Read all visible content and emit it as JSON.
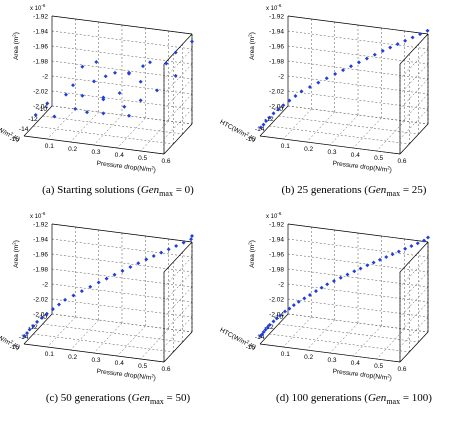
{
  "axis_text": {
    "exponent": "x 10",
    "exponent_power": "-6",
    "zlabel": "Area (m",
    "zlabel_sup": "2",
    "zlabel_end": ")",
    "xlabel": "Pressure drop(N/m",
    "xlabel_sup": "2",
    "xlabel_end": ")",
    "ylabel": "HTC(W/m",
    "ylabel_sup": "2",
    "ylabel_end": ".K)",
    "z_ticks": [
      "-1.92",
      "-1.94",
      "-1.96",
      "-1.98",
      "-2",
      "-2.02",
      "-2.04"
    ],
    "x_ticks": [
      "0.1",
      "0.2",
      "0.3",
      "0.4",
      "0.5",
      "0.6"
    ],
    "y_ticks": [
      "-10",
      "-12",
      "-14",
      "-16"
    ]
  },
  "colors": {
    "marker": "#1f3fd6",
    "axis": "#000000",
    "grid": "#555555"
  },
  "chart_data": [
    {
      "type": "scatter",
      "caption": {
        "prefix": "(a) Starting solutions (",
        "italic": "Gen",
        "sub": "max",
        "suffix": " = 0)"
      },
      "xlabel": "Pressure drop(N/m2)",
      "ylabel": "HTC(W/m2.K)",
      "zlabel": "Area (m2)",
      "xlim": [
        0.0,
        0.6
      ],
      "ylim": [
        -16,
        -10
      ],
      "zlim": [
        -2.04e-06,
        -1.92e-06
      ],
      "grid": true,
      "points": [
        {
          "x": 0.05,
          "y": -16.0,
          "z": -2.01e-06
        },
        {
          "x": 0.08,
          "y": -15.0,
          "z": -2e-06
        },
        {
          "x": 0.1,
          "y": -14.5,
          "z": -2.02e-06
        },
        {
          "x": 0.12,
          "y": -13.0,
          "z": -2e-06
        },
        {
          "x": 0.14,
          "y": -12.5,
          "z": -1.99e-06
        },
        {
          "x": 0.18,
          "y": -14.0,
          "z": -2.01e-06
        },
        {
          "x": 0.2,
          "y": -13.5,
          "z": -1.995e-06
        },
        {
          "x": 0.22,
          "y": -12.0,
          "z": -1.985e-06
        },
        {
          "x": 0.25,
          "y": -15.0,
          "z": -2.005e-06
        },
        {
          "x": 0.26,
          "y": -11.5,
          "z": -1.98e-06
        },
        {
          "x": 0.28,
          "y": -13.0,
          "z": -2e-06
        },
        {
          "x": 0.3,
          "y": -14.0,
          "z": -1.99e-06
        },
        {
          "x": 0.31,
          "y": -12.0,
          "z": -1.97e-06
        },
        {
          "x": 0.33,
          "y": -15.5,
          "z": -2e-06
        },
        {
          "x": 0.35,
          "y": -11.0,
          "z": -1.975e-06
        },
        {
          "x": 0.36,
          "y": -13.5,
          "z": -1.985e-06
        },
        {
          "x": 0.38,
          "y": -12.5,
          "z": -1.965e-06
        },
        {
          "x": 0.4,
          "y": -14.5,
          "z": -1.995e-06
        },
        {
          "x": 0.42,
          "y": -11.5,
          "z": -1.96e-06
        },
        {
          "x": 0.44,
          "y": -13.0,
          "z": -1.97e-06
        },
        {
          "x": 0.46,
          "y": -12.0,
          "z": -1.95e-06
        },
        {
          "x": 0.48,
          "y": -15.0,
          "z": -1.98e-06
        },
        {
          "x": 0.5,
          "y": -10.5,
          "z": -1.96e-06
        },
        {
          "x": 0.52,
          "y": -13.5,
          "z": -1.975e-06
        },
        {
          "x": 0.55,
          "y": -11.0,
          "z": -1.94e-06
        },
        {
          "x": 0.58,
          "y": -12.5,
          "z": -1.96e-06
        },
        {
          "x": 0.6,
          "y": -10.0,
          "z": -1.93e-06
        },
        {
          "x": 0.15,
          "y": -11.0,
          "z": -1.975e-06
        },
        {
          "x": 0.45,
          "y": -16.0,
          "z": -1.995e-06
        },
        {
          "x": 0.2,
          "y": -10.5,
          "z": -1.97e-06
        }
      ]
    },
    {
      "type": "scatter",
      "caption": {
        "prefix": "(b) 25 generations (",
        "italic": "Gen",
        "sub": "max",
        "suffix": " = 25)"
      },
      "xlabel": "Pressure drop(N/m2)",
      "ylabel": "HTC(W/m2.K)",
      "zlabel": "Area (m2)",
      "xlim": [
        0.0,
        0.6
      ],
      "ylim": [
        -16,
        -10
      ],
      "zlim": [
        -2.04e-06,
        -1.92e-06
      ],
      "grid": true,
      "points": [
        {
          "x": 0.0,
          "y": -15.8,
          "z": -2.03e-06
        },
        {
          "x": 0.005,
          "y": -15.5,
          "z": -2.028e-06
        },
        {
          "x": 0.01,
          "y": -15.2,
          "z": -2.025e-06
        },
        {
          "x": 0.02,
          "y": -14.9,
          "z": -2.022e-06
        },
        {
          "x": 0.03,
          "y": -14.6,
          "z": -2.018e-06
        },
        {
          "x": 0.045,
          "y": -14.3,
          "z": -2.014e-06
        },
        {
          "x": 0.06,
          "y": -14.0,
          "z": -2.01e-06
        },
        {
          "x": 0.08,
          "y": -13.7,
          "z": -2.005e-06
        },
        {
          "x": 0.1,
          "y": -13.4,
          "z": -2e-06
        },
        {
          "x": 0.12,
          "y": -13.1,
          "z": -1.995e-06
        },
        {
          "x": 0.15,
          "y": -12.8,
          "z": -1.99e-06
        },
        {
          "x": 0.18,
          "y": -12.5,
          "z": -1.985e-06
        },
        {
          "x": 0.21,
          "y": -12.2,
          "z": -1.98e-06
        },
        {
          "x": 0.24,
          "y": -11.9,
          "z": -1.975e-06
        },
        {
          "x": 0.27,
          "y": -11.7,
          "z": -1.97e-06
        },
        {
          "x": 0.3,
          "y": -11.5,
          "z": -1.965e-06
        },
        {
          "x": 0.33,
          "y": -11.3,
          "z": -1.96e-06
        },
        {
          "x": 0.36,
          "y": -11.1,
          "z": -1.955e-06
        },
        {
          "x": 0.39,
          "y": -10.9,
          "z": -1.95e-06
        },
        {
          "x": 0.42,
          "y": -10.7,
          "z": -1.945e-06
        },
        {
          "x": 0.45,
          "y": -10.6,
          "z": -1.94e-06
        },
        {
          "x": 0.48,
          "y": -10.5,
          "z": -1.935e-06
        },
        {
          "x": 0.51,
          "y": -10.4,
          "z": -1.93e-06
        },
        {
          "x": 0.54,
          "y": -10.3,
          "z": -1.925e-06
        },
        {
          "x": 0.57,
          "y": -10.2,
          "z": -1.92e-06
        },
        {
          "x": 0.6,
          "y": -10.1,
          "z": -1.915e-06
        }
      ]
    },
    {
      "type": "scatter",
      "caption": {
        "prefix": "(c) 50 generations (",
        "italic": "Gen",
        "sub": "max",
        "suffix": " = 50)"
      },
      "xlabel": "Pressure drop(N/m2)",
      "ylabel": "HTC(W/m2.K)",
      "zlabel": "Area (m2)",
      "xlim": [
        0.0,
        0.6
      ],
      "ylim": [
        -16,
        -10
      ],
      "zlim": [
        -2.04e-06,
        -1.92e-06
      ],
      "grid": true,
      "points": [
        {
          "x": 0.0,
          "y": -15.9,
          "z": -2.03e-06
        },
        {
          "x": 0.005,
          "y": -15.6,
          "z": -2.028e-06
        },
        {
          "x": 0.01,
          "y": -15.3,
          "z": -2.025e-06
        },
        {
          "x": 0.02,
          "y": -15.0,
          "z": -2.022e-06
        },
        {
          "x": 0.03,
          "y": -14.7,
          "z": -2.018e-06
        },
        {
          "x": 0.045,
          "y": -14.4,
          "z": -2.014e-06
        },
        {
          "x": 0.06,
          "y": -14.1,
          "z": -2.01e-06
        },
        {
          "x": 0.08,
          "y": -13.8,
          "z": -2.005e-06
        },
        {
          "x": 0.1,
          "y": -13.5,
          "z": -2e-06
        },
        {
          "x": 0.12,
          "y": -13.2,
          "z": -1.995e-06
        },
        {
          "x": 0.15,
          "y": -12.9,
          "z": -1.99e-06
        },
        {
          "x": 0.18,
          "y": -12.6,
          "z": -1.985e-06
        },
        {
          "x": 0.21,
          "y": -12.3,
          "z": -1.98e-06
        },
        {
          "x": 0.24,
          "y": -12.0,
          "z": -1.975e-06
        },
        {
          "x": 0.27,
          "y": -11.8,
          "z": -1.97e-06
        },
        {
          "x": 0.3,
          "y": -11.6,
          "z": -1.965e-06
        },
        {
          "x": 0.33,
          "y": -11.4,
          "z": -1.96e-06
        },
        {
          "x": 0.36,
          "y": -11.2,
          "z": -1.955e-06
        },
        {
          "x": 0.39,
          "y": -11.0,
          "z": -1.95e-06
        },
        {
          "x": 0.42,
          "y": -10.8,
          "z": -1.945e-06
        },
        {
          "x": 0.45,
          "y": -10.7,
          "z": -1.94e-06
        },
        {
          "x": 0.48,
          "y": -10.6,
          "z": -1.935e-06
        },
        {
          "x": 0.51,
          "y": -10.5,
          "z": -1.93e-06
        },
        {
          "x": 0.54,
          "y": -10.4,
          "z": -1.925e-06
        },
        {
          "x": 0.57,
          "y": -10.3,
          "z": -1.92e-06
        },
        {
          "x": 0.6,
          "y": -10.2,
          "z": -1.915e-06
        },
        {
          "x": 0.6,
          "y": -10.0,
          "z": -1.912e-06
        }
      ]
    },
    {
      "type": "scatter",
      "caption": {
        "prefix": "(d) 100 generations (",
        "italic": "Gen",
        "sub": "max",
        "suffix": " = 100)"
      },
      "xlabel": "Pressure drop(N/m2)",
      "ylabel": "HTC(W/m2.K)",
      "zlabel": "Area (m2)",
      "xlim": [
        0.0,
        0.6
      ],
      "ylim": [
        -16,
        -10
      ],
      "zlim": [
        -2.04e-06,
        -1.92e-06
      ],
      "grid": true,
      "points": [
        {
          "x": 0.0,
          "y": -15.9,
          "z": -2.03e-06
        },
        {
          "x": 0.003,
          "y": -15.7,
          "z": -2.029e-06
        },
        {
          "x": 0.006,
          "y": -15.5,
          "z": -2.027e-06
        },
        {
          "x": 0.01,
          "y": -15.3,
          "z": -2.025e-06
        },
        {
          "x": 0.015,
          "y": -15.1,
          "z": -2.023e-06
        },
        {
          "x": 0.02,
          "y": -14.9,
          "z": -2.021e-06
        },
        {
          "x": 0.03,
          "y": -14.6,
          "z": -2.018e-06
        },
        {
          "x": 0.04,
          "y": -14.4,
          "z": -2.015e-06
        },
        {
          "x": 0.05,
          "y": -14.2,
          "z": -2.012e-06
        },
        {
          "x": 0.065,
          "y": -13.9,
          "z": -2.008e-06
        },
        {
          "x": 0.08,
          "y": -13.7,
          "z": -2.005e-06
        },
        {
          "x": 0.095,
          "y": -13.5,
          "z": -2.001e-06
        },
        {
          "x": 0.11,
          "y": -13.2,
          "z": -1.998e-06
        },
        {
          "x": 0.13,
          "y": -13.0,
          "z": -1.994e-06
        },
        {
          "x": 0.15,
          "y": -12.8,
          "z": -1.99e-06
        },
        {
          "x": 0.17,
          "y": -12.5,
          "z": -1.986e-06
        },
        {
          "x": 0.19,
          "y": -12.3,
          "z": -1.982e-06
        },
        {
          "x": 0.21,
          "y": -12.1,
          "z": -1.978e-06
        },
        {
          "x": 0.235,
          "y": -11.9,
          "z": -1.974e-06
        },
        {
          "x": 0.26,
          "y": -11.7,
          "z": -1.97e-06
        },
        {
          "x": 0.285,
          "y": -11.5,
          "z": -1.966e-06
        },
        {
          "x": 0.31,
          "y": -11.3,
          "z": -1.962e-06
        },
        {
          "x": 0.335,
          "y": -11.2,
          "z": -1.958e-06
        },
        {
          "x": 0.36,
          "y": -11.0,
          "z": -1.954e-06
        },
        {
          "x": 0.385,
          "y": -10.9,
          "z": -1.95e-06
        },
        {
          "x": 0.41,
          "y": -10.8,
          "z": -1.946e-06
        },
        {
          "x": 0.435,
          "y": -10.7,
          "z": -1.942e-06
        },
        {
          "x": 0.46,
          "y": -10.6,
          "z": -1.938e-06
        },
        {
          "x": 0.485,
          "y": -10.5,
          "z": -1.934e-06
        },
        {
          "x": 0.51,
          "y": -10.4,
          "z": -1.93e-06
        },
        {
          "x": 0.535,
          "y": -10.3,
          "z": -1.926e-06
        },
        {
          "x": 0.56,
          "y": -10.2,
          "z": -1.922e-06
        },
        {
          "x": 0.585,
          "y": -10.1,
          "z": -1.918e-06
        },
        {
          "x": 0.6,
          "y": -10.0,
          "z": -1.914e-06
        }
      ]
    }
  ]
}
